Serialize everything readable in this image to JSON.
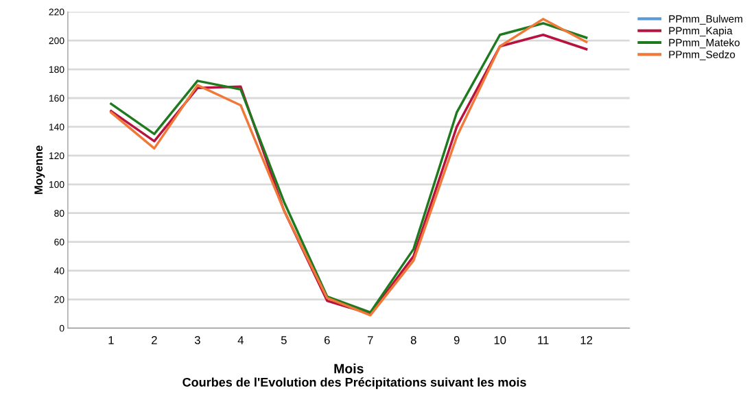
{
  "chart_data": {
    "type": "line",
    "title": "Courbes de l'Evolution des Précipitations suivant les mois",
    "xlabel": "Mois",
    "ylabel": "Moyenne",
    "x": [
      1,
      2,
      3,
      4,
      5,
      6,
      7,
      8,
      9,
      10,
      11,
      12
    ],
    "series": [
      {
        "name": "PPmm_Bulwem",
        "color": "#5b9bd5",
        "values": [
          null,
          null,
          null,
          null,
          null,
          null,
          null,
          null,
          null,
          null,
          null,
          null
        ]
      },
      {
        "name": "PPmm_Kapia",
        "color": "#b8123e",
        "values": [
          151,
          130,
          167,
          168,
          82,
          19,
          10,
          50,
          140,
          196,
          204,
          194
        ]
      },
      {
        "name": "PPmm_Mateko",
        "color": "#1f7a1f",
        "values": [
          156,
          135,
          172,
          166,
          88,
          22,
          11,
          55,
          150,
          204,
          212,
          202
        ]
      },
      {
        "name": "PPmm_Sedzo",
        "color": "#f07838",
        "values": [
          150,
          125,
          169,
          155,
          82,
          21,
          9,
          47,
          133,
          196,
          215,
          199
        ]
      }
    ],
    "xlim": [
      0,
      13
    ],
    "xticks": [
      1,
      2,
      3,
      4,
      5,
      6,
      7,
      8,
      9,
      10,
      11,
      12
    ],
    "ylim": [
      0,
      220
    ],
    "yticks": [
      0,
      20,
      40,
      60,
      80,
      100,
      120,
      140,
      160,
      180,
      200,
      220
    ],
    "grid": "y",
    "legend": "top right",
    "marker": "none",
    "line_style": "solid"
  }
}
